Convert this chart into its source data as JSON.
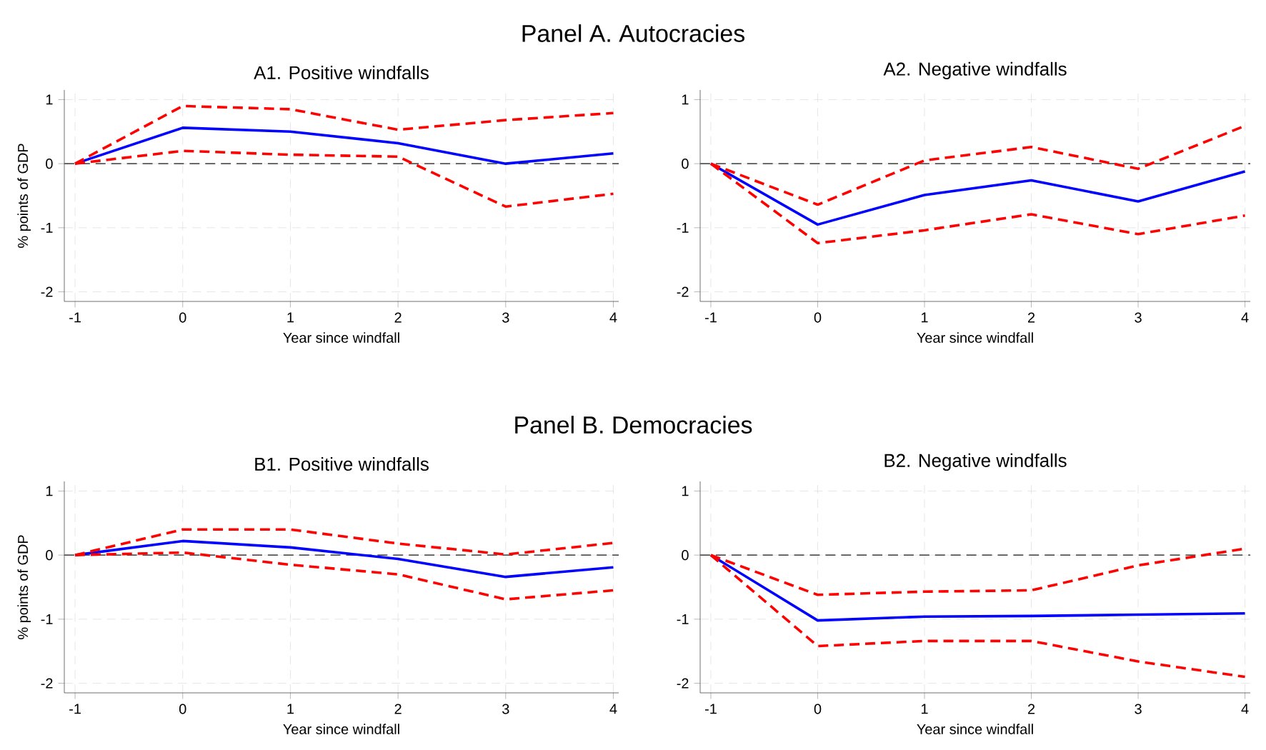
{
  "chart_data": [
    {
      "type": "line",
      "title": "A1. Positive windfalls",
      "xlabel": "Year since windfall",
      "ylabel": "% points of GDP",
      "annotations": [
        "Panel A. Autocracies"
      ],
      "x": [
        -1,
        0,
        1,
        2,
        3,
        4
      ],
      "xlim": [
        -1.1,
        4.05
      ],
      "ylim": [
        -2.15,
        1.15
      ],
      "xticks": [
        -1,
        0,
        1,
        2,
        3,
        4
      ],
      "yticks": [
        -2,
        -1,
        0,
        1
      ],
      "grid": true,
      "ref_lines": [
        {
          "axis": "y",
          "value": 0,
          "color": "#555555",
          "line_style": "dashed"
        }
      ],
      "series": [
        {
          "color": "#0000ff",
          "line_style": "solid",
          "values": [
            0,
            0.56,
            0.5,
            0.32,
            0.0,
            0.16
          ]
        },
        {
          "color": "#ff0000",
          "line_style": "dashed",
          "values": [
            0,
            0.9,
            0.85,
            0.53,
            0.68,
            0.79
          ]
        },
        {
          "color": "#ff0000",
          "line_style": "dashed",
          "values": [
            0,
            0.2,
            0.14,
            0.11,
            -0.67,
            -0.47
          ]
        }
      ]
    },
    {
      "type": "line",
      "title": "A2. Negative windfalls",
      "xlabel": "Year since windfall",
      "x": [
        -1,
        0,
        1,
        2,
        3,
        4
      ],
      "xlim": [
        -1.1,
        4.05
      ],
      "ylim": [
        -2.15,
        1.15
      ],
      "xticks": [
        -1,
        0,
        1,
        2,
        3,
        4
      ],
      "yticks": [
        -2,
        -1,
        0,
        1
      ],
      "grid": true,
      "ref_lines": [
        {
          "axis": "y",
          "value": 0,
          "color": "#555555",
          "line_style": "dashed"
        }
      ],
      "series": [
        {
          "color": "#0000ff",
          "line_style": "solid",
          "values": [
            0,
            -0.95,
            -0.49,
            -0.26,
            -0.59,
            -0.12
          ]
        },
        {
          "color": "#ff0000",
          "line_style": "dashed",
          "values": [
            0,
            -0.64,
            0.05,
            0.26,
            -0.08,
            0.59
          ]
        },
        {
          "color": "#ff0000",
          "line_style": "dashed",
          "values": [
            0,
            -1.24,
            -1.04,
            -0.79,
            -1.1,
            -0.81
          ]
        }
      ]
    },
    {
      "type": "line",
      "title": "B1. Positive windfalls",
      "xlabel": "Year since windfall",
      "ylabel": "% points of GDP",
      "annotations": [
        "Panel B. Democracies"
      ],
      "x": [
        -1,
        0,
        1,
        2,
        3,
        4
      ],
      "xlim": [
        -1.1,
        4.05
      ],
      "ylim": [
        -2.15,
        1.15
      ],
      "xticks": [
        -1,
        0,
        1,
        2,
        3,
        4
      ],
      "yticks": [
        -2,
        -1,
        0,
        1
      ],
      "grid": true,
      "ref_lines": [
        {
          "axis": "y",
          "value": 0,
          "color": "#555555",
          "line_style": "dashed"
        }
      ],
      "series": [
        {
          "color": "#0000ff",
          "line_style": "solid",
          "values": [
            0,
            0.22,
            0.12,
            -0.06,
            -0.34,
            -0.19
          ]
        },
        {
          "color": "#ff0000",
          "line_style": "dashed",
          "values": [
            0,
            0.4,
            0.4,
            0.18,
            0.01,
            0.19
          ]
        },
        {
          "color": "#ff0000",
          "line_style": "dashed",
          "values": [
            0,
            0.04,
            -0.15,
            -0.3,
            -0.69,
            -0.55
          ]
        }
      ]
    },
    {
      "type": "line",
      "title": "B2. Negative windfalls",
      "xlabel": "Year since windfall",
      "x": [
        -1,
        0,
        1,
        2,
        3,
        4
      ],
      "xlim": [
        -1.1,
        4.05
      ],
      "ylim": [
        -2.15,
        1.15
      ],
      "xticks": [
        -1,
        0,
        1,
        2,
        3,
        4
      ],
      "yticks": [
        -2,
        -1,
        0,
        1
      ],
      "grid": true,
      "ref_lines": [
        {
          "axis": "y",
          "value": 0,
          "color": "#555555",
          "line_style": "dashed"
        }
      ],
      "series": [
        {
          "color": "#0000ff",
          "line_style": "solid",
          "values": [
            0,
            -1.02,
            -0.96,
            -0.95,
            -0.93,
            -0.91
          ]
        },
        {
          "color": "#ff0000",
          "line_style": "dashed",
          "values": [
            0,
            -0.62,
            -0.57,
            -0.55,
            -0.16,
            0.1
          ]
        },
        {
          "color": "#ff0000",
          "line_style": "dashed",
          "values": [
            0,
            -1.42,
            -1.34,
            -1.34,
            -1.66,
            -1.9
          ]
        }
      ]
    }
  ]
}
